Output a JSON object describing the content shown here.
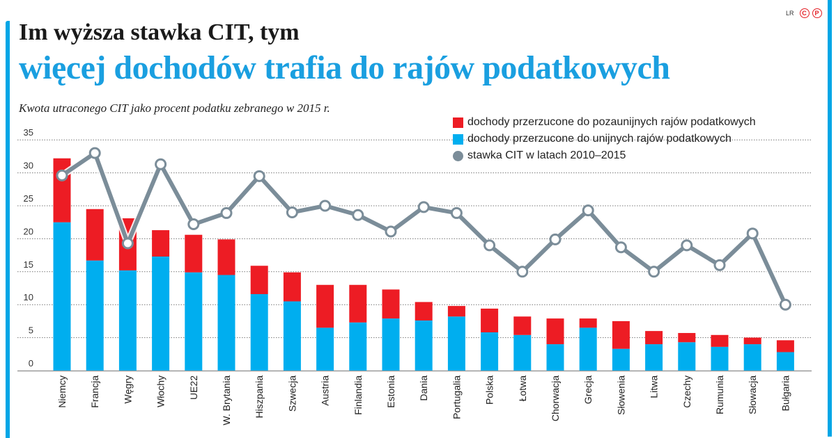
{
  "header": {
    "title_line1": "Im wyższa stawka CIT, tym",
    "title_line2": "więcej dochodów trafia do rajów podatkowych",
    "logo_text": "LR",
    "logo_marks": [
      "C",
      "P"
    ]
  },
  "chart_data": {
    "type": "bar",
    "stacked": true,
    "subtitle": "Kwota utraconego CIT  jako procent podatku zebranego w 2015 r.",
    "ylim": [
      0,
      35
    ],
    "yticks": [
      "0",
      "5",
      "10",
      "15",
      "20",
      "25",
      "30",
      "35"
    ],
    "grid": true,
    "legend_position": "top-right",
    "categories": [
      "Niemcy",
      "Francja",
      "Węgry",
      "Włochy",
      "UE22",
      "W. Brytania",
      "Hiszpania",
      "Szwecja",
      "Austria",
      "Finlandia",
      "Estonia",
      "Dania",
      "Portugalia",
      "Polska",
      "Łotwa",
      "Chorwacja",
      "Grecja",
      "Słowenia",
      "Litwa",
      "Czechy",
      "Rumunia",
      "Słowacja",
      "Bułgaria"
    ],
    "series": [
      {
        "name": "dochody przerzucone do unijnych rajów podatkowych",
        "type": "bar",
        "color": "#00aeef",
        "values": [
          22.5,
          16.7,
          15.2,
          17.3,
          14.9,
          14.5,
          11.6,
          10.5,
          6.5,
          7.3,
          7.9,
          7.6,
          8.2,
          5.8,
          5.4,
          4.0,
          6.5,
          3.3,
          4.0,
          4.3,
          3.6,
          4.0,
          2.8
        ]
      },
      {
        "name": "dochody przerzucone do pozaunijnych rajów podatkowych",
        "type": "bar",
        "color": "#ed1c24",
        "values": [
          9.7,
          7.8,
          7.9,
          4.0,
          5.7,
          5.4,
          4.3,
          4.4,
          6.5,
          5.7,
          4.4,
          2.8,
          1.6,
          3.6,
          2.8,
          3.9,
          1.4,
          4.2,
          2.0,
          1.4,
          1.8,
          1.0,
          1.8
        ]
      },
      {
        "name": "stawka CIT w latach 2010–2015",
        "type": "line",
        "color": "#7b8d99",
        "values": [
          29.6,
          33.0,
          19.3,
          31.3,
          22.2,
          23.9,
          29.5,
          24.0,
          25.0,
          23.6,
          21.1,
          24.8,
          23.9,
          19.0,
          15.0,
          19.9,
          24.3,
          18.7,
          15.0,
          19.0,
          16.0,
          20.8,
          10.0
        ]
      }
    ]
  }
}
